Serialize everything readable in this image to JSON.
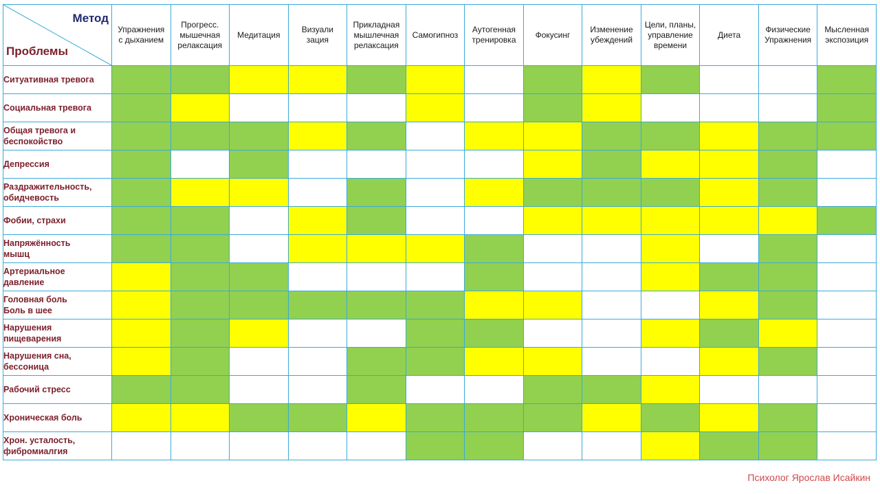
{
  "header": {
    "corner_method": "Метод",
    "corner_problems": "Проблемы"
  },
  "methods": [
    "Упражнения\nс дыханием",
    "Прогресс.\nмышечная\nрелаксация",
    "Медитация",
    "Визуали\nзация",
    "Прикладная\nмышлечная\nрелаксация",
    "Самогипноз",
    "Аутогенная\nтренировка",
    "Фокусинг",
    "Изменение\nубеждений",
    "Цели, планы,\nуправление\nвремени",
    "Диета",
    "Физические\nУпражнения",
    "Мысленная\nэкспозиция"
  ],
  "rows": [
    {
      "problem": "Ситуативная тревога",
      "cells": [
        "g",
        "g",
        "y",
        "y",
        "g",
        "y",
        "w",
        "g",
        "y",
        "g",
        "w",
        "w",
        "g"
      ]
    },
    {
      "problem": "Социальная тревога",
      "cells": [
        "g",
        "y",
        "w",
        "w",
        "w",
        "y",
        "w",
        "g",
        "y",
        "w",
        "w",
        "w",
        "g"
      ]
    },
    {
      "problem": "Общая тревога и\nбеспокойство",
      "cells": [
        "g",
        "g",
        "g",
        "y",
        "g",
        "w",
        "y",
        "y",
        "g",
        "g",
        "y",
        "g",
        "g"
      ]
    },
    {
      "problem": "Депрессия",
      "cells": [
        "g",
        "w",
        "g",
        "w",
        "w",
        "w",
        "w",
        "y",
        "g",
        "y",
        "y",
        "g",
        "w"
      ]
    },
    {
      "problem": "Раздражительность,\nобидчевость",
      "cells": [
        "g",
        "y",
        "y",
        "w",
        "g",
        "w",
        "y",
        "g",
        "g",
        "g",
        "y",
        "g",
        "w"
      ]
    },
    {
      "problem": "Фобии, страхи",
      "cells": [
        "g",
        "g",
        "w",
        "y",
        "g",
        "w",
        "w",
        "y",
        "y",
        "y",
        "y",
        "y",
        "g"
      ]
    },
    {
      "problem": "Напряжённость\nмышц",
      "cells": [
        "g",
        "g",
        "w",
        "y",
        "y",
        "y",
        "g",
        "w",
        "w",
        "y",
        "w",
        "g",
        "w"
      ]
    },
    {
      "problem": "Артериальное\nдавление",
      "cells": [
        "y",
        "g",
        "g",
        "w",
        "w",
        "w",
        "g",
        "w",
        "w",
        "y",
        "g",
        "g",
        "w"
      ]
    },
    {
      "problem": "Головная боль\nБоль в шее",
      "cells": [
        "y",
        "g",
        "g",
        "g",
        "g",
        "g",
        "y",
        "y",
        "w",
        "w",
        "y",
        "g",
        "w"
      ]
    },
    {
      "problem": "Нарушения\nпищеварения",
      "cells": [
        "y",
        "g",
        "y",
        "w",
        "w",
        "g",
        "g",
        "w",
        "w",
        "y",
        "g",
        "y",
        "w"
      ]
    },
    {
      "problem": "Нарушения сна,\nбессоница",
      "cells": [
        "y",
        "g",
        "w",
        "w",
        "g",
        "g",
        "y",
        "y",
        "w",
        "w",
        "y",
        "g",
        "w"
      ]
    },
    {
      "problem": "Рабочий стресс",
      "cells": [
        "g",
        "g",
        "w",
        "w",
        "g",
        "w",
        "w",
        "g",
        "g",
        "y",
        "w",
        "w",
        "w"
      ]
    },
    {
      "problem": "Хроническая боль",
      "cells": [
        "y",
        "y",
        "g",
        "g",
        "y",
        "g",
        "g",
        "g",
        "y",
        "g",
        "y",
        "g",
        "w"
      ]
    },
    {
      "problem": "Хрон. усталость,\nфибромиалгия",
      "cells": [
        "w",
        "w",
        "w",
        "w",
        "w",
        "g",
        "g",
        "w",
        "w",
        "y",
        "g",
        "g",
        "w"
      ]
    }
  ],
  "colors": {
    "g": "#92d050",
    "y": "#ffff00",
    "w": "#ffffff",
    "border": "#3aa9d9"
  },
  "footer": {
    "credit": "Психолог Ярослав Исайкин"
  }
}
